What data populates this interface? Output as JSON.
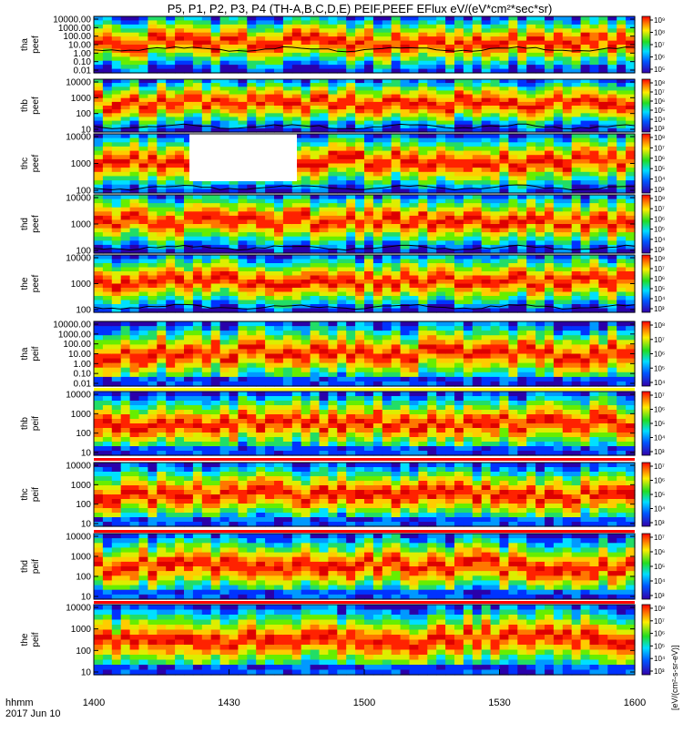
{
  "title": "P5, P1, P2, P3, P4 (TH-A,B,C,D,E) PEIF,PEEF EFlux eV/(eV*cm²*sec*sr)",
  "x_axis": {
    "label": "hhmm",
    "date": "2017 Jun 10",
    "ticks": [
      "1400",
      "1430",
      "1500",
      "1530",
      "1600"
    ],
    "range": [
      "14:00",
      "16:00"
    ]
  },
  "colorbar_label": "[eV/(cm²-s-sr-eV)]",
  "colors": {
    "low": "#3300cc",
    "mid_low": "#00ccff",
    "mid": "#33dd33",
    "mid_high": "#ffee00",
    "high": "#ff2200",
    "flag_red": "#ff0000",
    "flag_yellow": "#ffff00"
  },
  "chart_data": [
    {
      "type": "heatmap",
      "probe": "tha",
      "species": "peef",
      "ylabel_top": "tha",
      "ylabel_bottom": "peef",
      "yticks": [
        "10000.00",
        "1000.00",
        "100.00",
        "10.00",
        "1.00",
        "0.10",
        "0.01"
      ],
      "scale": "log",
      "colorbar_ticks": [
        "10⁵",
        "10⁶",
        "10⁷",
        "10⁸",
        "10⁹"
      ],
      "colorbar_range": [
        100000,
        1000000000
      ],
      "has_line": true
    },
    {
      "type": "heatmap",
      "probe": "thb",
      "species": "peef",
      "ylabel_top": "thb",
      "ylabel_bottom": "peef",
      "yticks": [
        "10000",
        "1000",
        "100",
        "10"
      ],
      "scale": "log",
      "colorbar_ticks": [
        "10³",
        "10⁴",
        "10⁵",
        "10⁶",
        "10⁷",
        "10⁸"
      ],
      "colorbar_range": [
        1000,
        100000000
      ],
      "has_line": true
    },
    {
      "type": "heatmap",
      "probe": "thc",
      "species": "peef",
      "ylabel_top": "thc",
      "ylabel_bottom": "peef",
      "yticks": [
        "10000",
        "1000",
        "100"
      ],
      "scale": "log",
      "colorbar_ticks": [
        "10³",
        "10⁴",
        "10⁵",
        "10⁶",
        "10⁷",
        "10⁸"
      ],
      "colorbar_range": [
        1000,
        100000000
      ],
      "has_line": true
    },
    {
      "type": "heatmap",
      "probe": "thd",
      "species": "peef",
      "ylabel_top": "thd",
      "ylabel_bottom": "peef",
      "yticks": [
        "10000",
        "1000",
        "100"
      ],
      "scale": "log",
      "colorbar_ticks": [
        "10³",
        "10⁴",
        "10⁵",
        "10⁶",
        "10⁷",
        "10⁸"
      ],
      "colorbar_range": [
        1000,
        100000000
      ],
      "has_line": true
    },
    {
      "type": "heatmap",
      "probe": "the",
      "species": "peef",
      "ylabel_top": "the",
      "ylabel_bottom": "peef",
      "yticks": [
        "10000",
        "1000",
        "100"
      ],
      "scale": "log",
      "colorbar_ticks": [
        "10³",
        "10⁴",
        "10⁵",
        "10⁶",
        "10⁷",
        "10⁸"
      ],
      "colorbar_range": [
        1000,
        100000000
      ],
      "has_line": true
    },
    {
      "type": "heatmap",
      "probe": "tha",
      "species": "peif",
      "ylabel_top": "tha",
      "ylabel_bottom": "peif",
      "yticks": [
        "10000.00",
        "1000.00",
        "100.00",
        "10.00",
        "1.00",
        "0.10",
        "0.01"
      ],
      "scale": "log",
      "colorbar_ticks": [
        "10⁴",
        "10⁵",
        "10⁶",
        "10⁷",
        "10⁸"
      ],
      "colorbar_range": [
        10000,
        100000000
      ],
      "has_line": false
    },
    {
      "type": "heatmap",
      "probe": "thb",
      "species": "peif",
      "ylabel_top": "thb",
      "ylabel_bottom": "peif",
      "yticks": [
        "10000",
        "1000",
        "100",
        "10"
      ],
      "scale": "log",
      "colorbar_ticks": [
        "10³",
        "10⁴",
        "10⁵",
        "10⁶",
        "10⁷"
      ],
      "colorbar_range": [
        1000,
        10000000
      ],
      "has_line": false
    },
    {
      "type": "heatmap",
      "probe": "thc",
      "species": "peif",
      "ylabel_top": "thc",
      "ylabel_bottom": "peif",
      "yticks": [
        "10000",
        "1000",
        "100",
        "10"
      ],
      "scale": "log",
      "colorbar_ticks": [
        "10³",
        "10⁴",
        "10⁵",
        "10⁶",
        "10⁷"
      ],
      "colorbar_range": [
        1000,
        10000000
      ],
      "has_line": false
    },
    {
      "type": "heatmap",
      "probe": "thd",
      "species": "peif",
      "ylabel_top": "thd",
      "ylabel_bottom": "peif",
      "yticks": [
        "10000",
        "1000",
        "100",
        "10"
      ],
      "scale": "log",
      "colorbar_ticks": [
        "10³",
        "10⁴",
        "10⁵",
        "10⁶",
        "10⁷"
      ],
      "colorbar_range": [
        1000,
        10000000
      ],
      "has_line": false
    },
    {
      "type": "heatmap",
      "probe": "the",
      "species": "peif",
      "ylabel_top": "the",
      "ylabel_bottom": "peif",
      "yticks": [
        "10000",
        "1000",
        "100",
        "10"
      ],
      "scale": "log",
      "colorbar_ticks": [
        "10³",
        "10⁴",
        "10⁵",
        "10⁶",
        "10⁷",
        "10⁸"
      ],
      "colorbar_range": [
        1000,
        100000000
      ],
      "has_line": false
    }
  ]
}
